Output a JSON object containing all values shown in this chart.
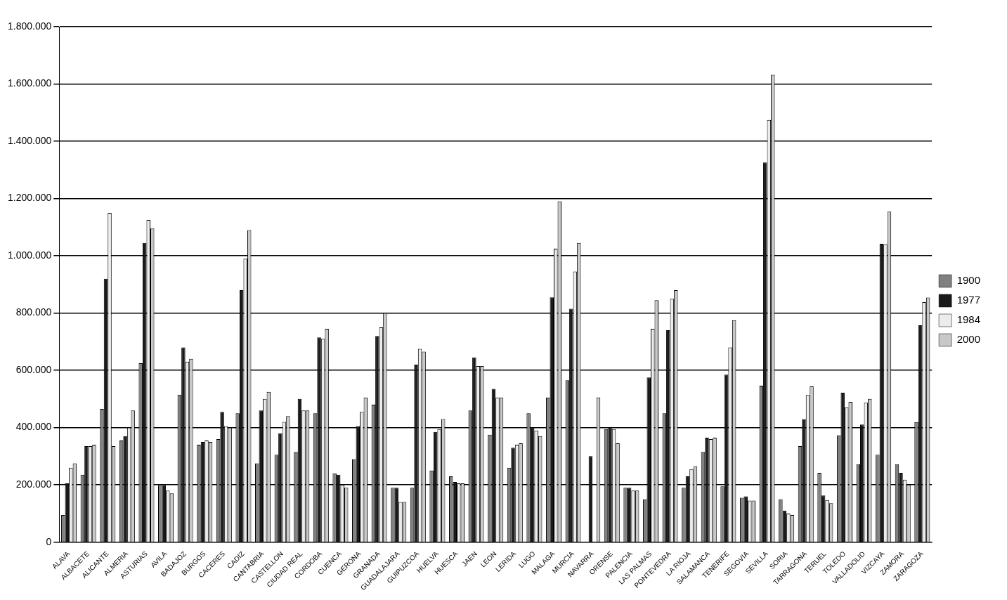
{
  "chart_data": {
    "type": "bar",
    "categories": [
      "ALAVA",
      "ALBACETE",
      "ALICANTE",
      "ALMERIA",
      "ASTURIAS",
      "AVILA",
      "BADAJOZ",
      "BURGOS",
      "CACERES",
      "CADIZ",
      "CANTABRIA",
      "CASTELLON",
      "CIUDAD REAL",
      "CORDOBA",
      "CUENCA",
      "GERONA",
      "GRANADA",
      "GUADALAJARA",
      "GUIPUZCOA",
      "HUELVA",
      "HUESCA",
      "JAEN",
      "LEON",
      "LERIDA",
      "LUGO",
      "MALAGA",
      "MURCIA",
      "NAVARRA",
      "ORENSE",
      "PALENCIA",
      "LAS PALMAS",
      "PONTEVEDRA",
      "LA RIOJA",
      "SALAMANCA",
      "TENERIFE",
      "SEGOVIA",
      "SEVILLA",
      "SORIA",
      "TARRAGONA",
      "TERUEL",
      "TOLEDO",
      "VALLADOLID",
      "VIZCAYA",
      "ZAMORA",
      "ZARAGOZA"
    ],
    "series": [
      {
        "name": "1900",
        "color": "#808080",
        "values": [
          95000,
          235000,
          465000,
          355000,
          625000,
          200000,
          515000,
          340000,
          360000,
          450000,
          275000,
          305000,
          315000,
          450000,
          240000,
          290000,
          480000,
          190000,
          190000,
          250000,
          230000,
          460000,
          375000,
          260000,
          450000,
          505000,
          565000,
          null,
          395000,
          190000,
          150000,
          450000,
          190000,
          315000,
          195000,
          155000,
          546000,
          150000,
          335000,
          242000,
          373000,
          272000,
          305000,
          272000,
          419000
        ]
      },
      {
        "name": "1977",
        "color": "#1a1a1a",
        "values": [
          205000,
          335000,
          920000,
          370000,
          1045000,
          200000,
          680000,
          350000,
          455000,
          880000,
          460000,
          380000,
          500000,
          715000,
          235000,
          405000,
          720000,
          190000,
          620000,
          385000,
          210000,
          645000,
          535000,
          330000,
          400000,
          855000,
          815000,
          300000,
          400000,
          190000,
          575000,
          740000,
          230000,
          365000,
          585000,
          160000,
          1326000,
          110000,
          430000,
          163000,
          522000,
          411000,
          1042000,
          242000,
          757000
        ]
      },
      {
        "name": "1984",
        "color": "#ececec",
        "values": [
          260000,
          335000,
          1150000,
          400000,
          1125000,
          180000,
          630000,
          355000,
          405000,
          990000,
          500000,
          420000,
          460000,
          710000,
          200000,
          455000,
          750000,
          140000,
          675000,
          395000,
          205000,
          615000,
          505000,
          340000,
          390000,
          1025000,
          945000,
          null,
          395000,
          180000,
          745000,
          850000,
          255000,
          360000,
          680000,
          145000,
          1474000,
          100000,
          514000,
          147000,
          471000,
          487000,
          1040000,
          218000,
          838000
        ]
      },
      {
        "name": "2000",
        "color": "#c8c8c8",
        "values": [
          275000,
          340000,
          335000,
          460000,
          1095000,
          170000,
          640000,
          350000,
          400000,
          1090000,
          525000,
          440000,
          460000,
          745000,
          190000,
          505000,
          800000,
          140000,
          665000,
          430000,
          205000,
          615000,
          505000,
          345000,
          370000,
          1190000,
          1045000,
          505000,
          345000,
          180000,
          845000,
          880000,
          265000,
          365000,
          775000,
          145000,
          1632000,
          95000,
          544000,
          136000,
          490000,
          500000,
          1154000,
          201000,
          854000
        ]
      }
    ],
    "ylim": [
      0,
      1800000
    ],
    "yticks": [
      {
        "value": 0,
        "label": "0"
      },
      {
        "value": 200000,
        "label": "200.000"
      },
      {
        "value": 400000,
        "label": "400.000"
      },
      {
        "value": 600000,
        "label": "600.000"
      },
      {
        "value": 800000,
        "label": "800.000"
      },
      {
        "value": 1000000,
        "label": "1.000.000"
      },
      {
        "value": 1200000,
        "label": "1.200.000"
      },
      {
        "value": 1400000,
        "label": "1.400.000"
      },
      {
        "value": 1600000,
        "label": "1.600.000"
      },
      {
        "value": 1800000,
        "label": "1.800.000"
      }
    ],
    "grid": "y",
    "legend": "right"
  }
}
